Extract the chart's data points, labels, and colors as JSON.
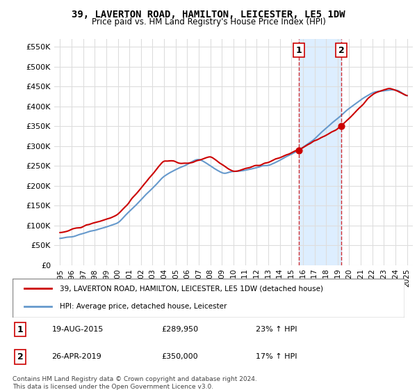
{
  "title": "39, LAVERTON ROAD, HAMILTON, LEICESTER, LE5 1DW",
  "subtitle": "Price paid vs. HM Land Registry's House Price Index (HPI)",
  "ylabel_ticks": [
    "£0",
    "£50K",
    "£100K",
    "£150K",
    "£200K",
    "£250K",
    "£300K",
    "£350K",
    "£400K",
    "£450K",
    "£500K",
    "£550K"
  ],
  "ytick_values": [
    0,
    50000,
    100000,
    150000,
    200000,
    250000,
    300000,
    350000,
    400000,
    450000,
    500000,
    550000
  ],
  "ylim": [
    0,
    570000
  ],
  "sale1_x": 2015.63,
  "sale1_y": 289950,
  "sale1_label": "1",
  "sale2_x": 2019.32,
  "sale2_y": 350000,
  "sale2_label": "2",
  "vline1_x": 2015.63,
  "vline2_x": 2019.32,
  "highlight_xmin": 2015.63,
  "highlight_xmax": 2019.32,
  "property_line_color": "#cc0000",
  "hpi_line_color": "#6699cc",
  "highlight_color": "#ddeeff",
  "vline_color": "#cc0000",
  "legend_property_label": "39, LAVERTON ROAD, HAMILTON, LEICESTER, LE5 1DW (detached house)",
  "legend_hpi_label": "HPI: Average price, detached house, Leicester",
  "table_data": [
    {
      "num": "1",
      "date": "19-AUG-2015",
      "price": "£289,950",
      "change": "23% ↑ HPI"
    },
    {
      "num": "2",
      "date": "26-APR-2019",
      "price": "£350,000",
      "change": "17% ↑ HPI"
    }
  ],
  "footer": "Contains HM Land Registry data © Crown copyright and database right 2024.\nThis data is licensed under the Open Government Licence v3.0.",
  "xlim_left": 1994.5,
  "xlim_right": 2025.5,
  "xtick_years": [
    1995,
    1996,
    1997,
    1998,
    1999,
    2000,
    2001,
    2002,
    2003,
    2004,
    2005,
    2006,
    2007,
    2008,
    2009,
    2010,
    2011,
    2012,
    2013,
    2014,
    2015,
    2016,
    2017,
    2018,
    2019,
    2020,
    2021,
    2022,
    2023,
    2024,
    2025
  ]
}
